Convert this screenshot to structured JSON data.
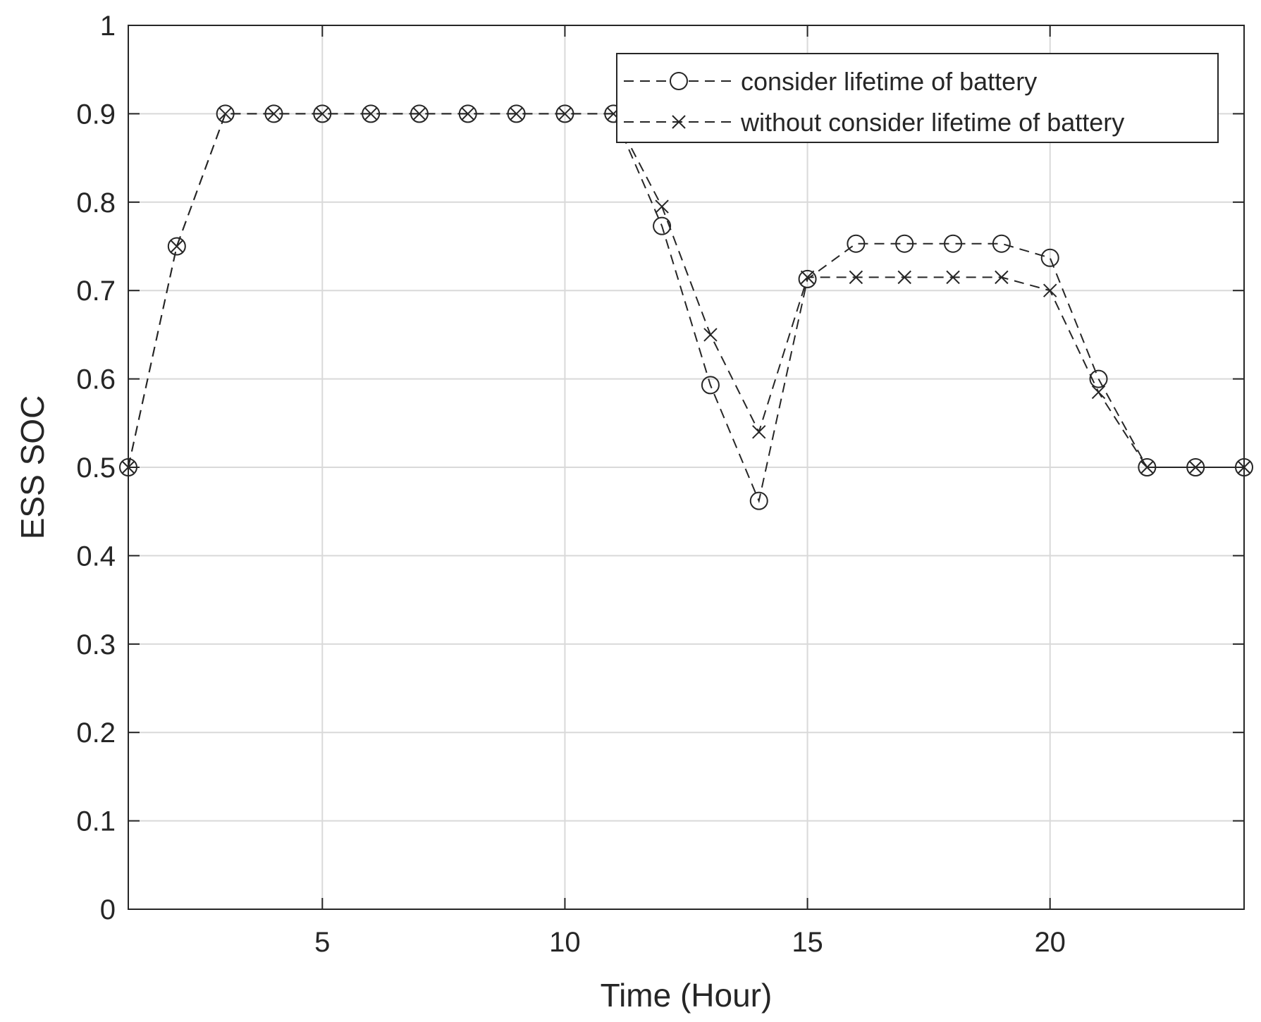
{
  "chart_data": {
    "type": "line",
    "title": "",
    "xlabel": "Time (Hour)",
    "ylabel": "ESS SOC",
    "xlim": [
      1,
      24
    ],
    "ylim": [
      0,
      1
    ],
    "xticks": [
      5,
      10,
      15,
      20
    ],
    "yticks": [
      0,
      0.1,
      0.2,
      0.3,
      0.4,
      0.5,
      0.6,
      0.7,
      0.8,
      0.9,
      1
    ],
    "xtick_labels": [
      "5",
      "10",
      "15",
      "20"
    ],
    "ytick_labels": [
      "0",
      "0.1",
      "0.2",
      "0.3",
      "0.4",
      "0.5",
      "0.6",
      "0.7",
      "0.8",
      "0.9",
      "1"
    ],
    "grid": true,
    "legend_position": "top-right",
    "x": [
      1,
      2,
      3,
      4,
      5,
      6,
      7,
      8,
      9,
      10,
      11,
      12,
      13,
      14,
      15,
      16,
      17,
      18,
      19,
      20,
      21,
      22,
      23,
      24
    ],
    "series": [
      {
        "name": "consider lifetime of battery",
        "marker": "circle",
        "line_style": "dashed",
        "values": [
          0.5,
          0.75,
          0.9,
          0.9,
          0.9,
          0.9,
          0.9,
          0.9,
          0.9,
          0.9,
          0.9,
          0.773,
          0.593,
          0.462,
          0.713,
          0.753,
          0.753,
          0.753,
          0.753,
          0.737,
          0.6,
          0.5,
          0.5,
          0.5
        ]
      },
      {
        "name": "without consider lifetime of battery",
        "marker": "x",
        "line_style": "dashed",
        "values": [
          0.5,
          0.75,
          0.9,
          0.9,
          0.9,
          0.9,
          0.9,
          0.9,
          0.9,
          0.9,
          0.9,
          0.795,
          0.65,
          0.54,
          0.715,
          0.715,
          0.715,
          0.715,
          0.715,
          0.7,
          0.585,
          0.5,
          0.5,
          0.5
        ]
      }
    ],
    "colors": {
      "line": "#262626",
      "grid": "#d9d9d9",
      "axis": "#262626"
    }
  }
}
